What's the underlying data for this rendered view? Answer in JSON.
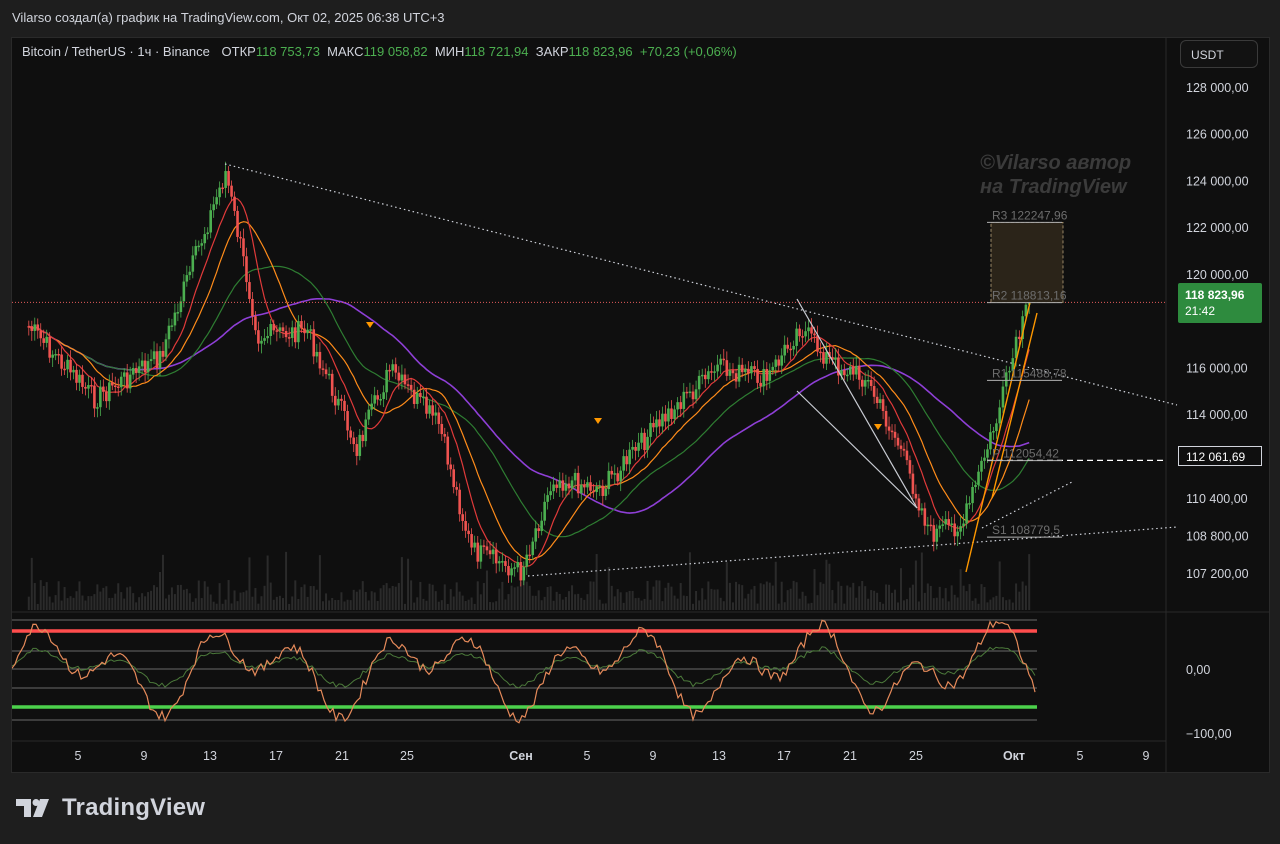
{
  "header": {
    "caption": "Vilarso создал(а) график на TradingView.com, Окт 02, 2025 06:38 UTC+3"
  },
  "legend": {
    "symbol": "Bitcoin / TetherUS · 1ч · Binance",
    "open_label": "ОТКР",
    "open_value": "118 753,73",
    "high_label": "МАКС",
    "high_value": "119 058,82",
    "low_label": "МИН",
    "low_value": "118 721,94",
    "close_label": "ЗАКР",
    "close_value": "118 823,96",
    "change": "+70,23 (+0,06%)"
  },
  "quote_currency": "USDT",
  "watermark": {
    "line1": "©Vilarso автор",
    "line2": "на TradingView"
  },
  "last_price": {
    "value": "118 823,96",
    "countdown": "21:42"
  },
  "horizontal_line_label": "112 061,69",
  "pivot_labels": {
    "r3": "R3 122247,96",
    "r2": "R2 118813,16",
    "r1": "R1 115488,78",
    "p": "P 112054,42",
    "s1": "S1 108779,5"
  },
  "brand": {
    "name": "TradingView"
  },
  "colors": {
    "up": "#26a69a",
    "down": "#ef5350",
    "green": "#4caf50",
    "ma_fast": "#e03a3a",
    "ma_mid": "#ff8c1a",
    "ma_slow": "#2e7d32",
    "ma_long": "#8e3fd6",
    "trend": "#d1d4dc",
    "channel": "#ff9800",
    "osc_upper": "#ff4d4d",
    "osc_lower": "#4cd24c"
  },
  "chart_data": [
    {
      "type": "line",
      "name": "price",
      "yaxis_ticks": [
        128000,
        126000,
        124000,
        122000,
        120000,
        116000,
        114000,
        110400,
        108800,
        107200
      ],
      "yaxis_labels": [
        "128 000,00",
        "126 000,00",
        "124 000,00",
        "122 000,00",
        "120 000,00",
        "116 000,00",
        "114 000,00",
        "110 400,00",
        "108 800,00",
        "107 200,00"
      ],
      "xaxis_labels": [
        "5",
        "9",
        "13",
        "17",
        "21",
        "25",
        "Сен",
        "5",
        "9",
        "13",
        "17",
        "21",
        "25",
        "Окт",
        "5",
        "9"
      ],
      "x": [
        "Авг 2",
        "Авг 6",
        "Авг 10",
        "Авг 14",
        "Авг 16",
        "Авг 19",
        "Авг 22",
        "Авг 24",
        "Авг 27",
        "Авг 29",
        "Сен 1",
        "Сен 3",
        "Сен 6",
        "Сен 10",
        "Сен 13",
        "Сен 16",
        "Сен 18",
        "Сен 20",
        "Сен 22",
        "Сен 24",
        "Сен 26",
        "Сен 28",
        "Сен 30",
        "Окт 1",
        "Окт 2"
      ],
      "y": [
        117800,
        114700,
        116500,
        124400,
        117400,
        117600,
        112600,
        115900,
        113600,
        108200,
        107300,
        111300,
        110900,
        114100,
        116000,
        115500,
        117800,
        116200,
        115600,
        112800,
        108900,
        109400,
        113800,
        116400,
        118824
      ],
      "last_price": 118823.96,
      "horizontal_line": 112061.69
    },
    {
      "type": "line",
      "name": "oscillator",
      "yaxis_labels": [
        "0,00",
        "−100,00"
      ],
      "levels": [
        0,
        -100
      ]
    }
  ]
}
